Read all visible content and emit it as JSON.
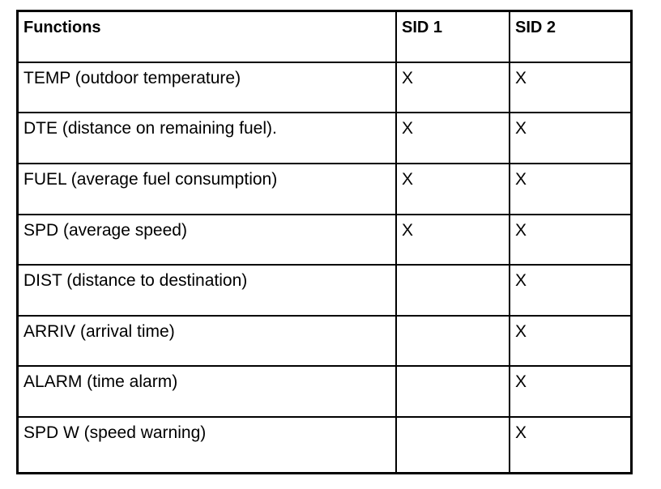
{
  "table": {
    "header": [
      "Functions",
      "SID 1",
      "SID 2"
    ],
    "rows": [
      [
        "TEMP (outdoor temperature)",
        "X",
        "X"
      ],
      [
        "DTE (distance on remaining fuel).",
        "X",
        "X"
      ],
      [
        "FUEL (average fuel consumption)",
        "X",
        "X"
      ],
      [
        "SPD (average speed)",
        "X",
        "X"
      ],
      [
        "DIST (distance to destination)",
        null,
        "X"
      ],
      [
        "ARRIV (arrival time)",
        null,
        "X"
      ],
      [
        "ALARM (time alarm)",
        null,
        "X"
      ],
      [
        "SPD W (speed warning)",
        null,
        "X"
      ]
    ]
  }
}
